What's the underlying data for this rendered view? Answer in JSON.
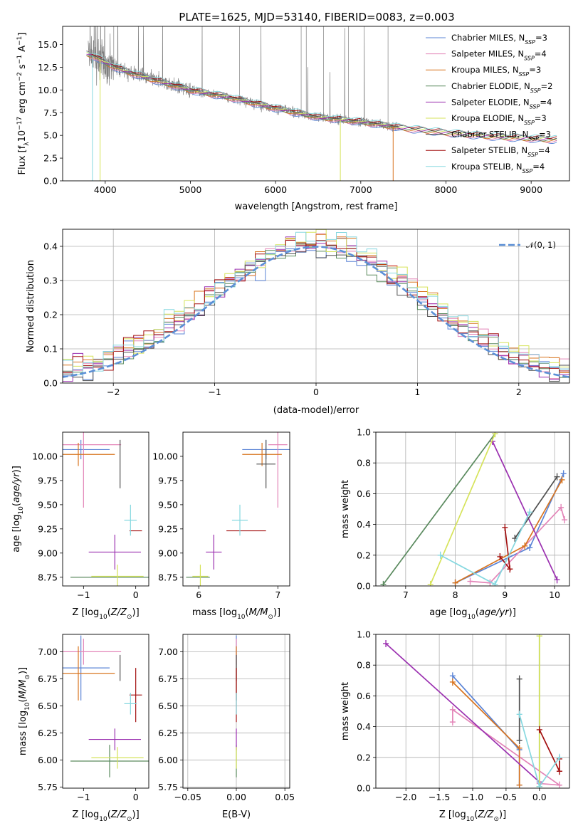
{
  "figure_title": "PLATE=1625, MJD=53140, FIBERID=0083, z=0.003",
  "colors": {
    "Chabrier MILES": "#5b84d6",
    "Salpeter MILES": "#e385b8",
    "Kroupa MILES": "#d8741f",
    "Chabrier ELODIE": "#5a8a5e",
    "Salpeter ELODIE": "#9b30b0",
    "Kroupa ELODIE": "#d6e35a",
    "Chabrier STELIB": "#505050",
    "Salpeter STELIB": "#a31010",
    "Kroupa STELIB": "#86d8e0",
    "data": "#808080",
    "normal": "#5b8fd6"
  },
  "chart_data": [
    {
      "id": "spectrum",
      "type": "line",
      "xlabel": "wavelength [Angstrom, rest frame]",
      "ylabel": "Flux [fλ10⁻¹⁷ erg cm⁻² s⁻¹ A⁻¹]",
      "xlim": [
        3500,
        9450
      ],
      "ylim": [
        0,
        17
      ],
      "xticks": [
        4000,
        5000,
        6000,
        7000,
        8000,
        9000
      ],
      "yticks": [
        0.0,
        2.5,
        5.0,
        7.5,
        10.0,
        12.5,
        15.0
      ],
      "legend": "top-right",
      "legend_entries": [
        {
          "name": "Chabrier MILES",
          "nssp": "3"
        },
        {
          "name": "Salpeter MILES",
          "nssp": "4"
        },
        {
          "name": "Kroupa MILES",
          "nssp": "3"
        },
        {
          "name": "Chabrier ELODIE",
          "nssp": "2"
        },
        {
          "name": "Salpeter ELODIE",
          "nssp": "4"
        },
        {
          "name": "Kroupa ELODIE",
          "nssp": "3"
        },
        {
          "name": "Chabrier STELIB",
          "nssp": "3"
        },
        {
          "name": "Salpeter STELIB",
          "nssp": "4"
        },
        {
          "name": "Kroupa STELIB",
          "nssp": "4"
        }
      ],
      "continuum": {
        "wavelength": [
          3780,
          3900,
          4000,
          4200,
          4500,
          5000,
          5500,
          6000,
          6500,
          7000,
          7500,
          8000,
          8500,
          9200
        ],
        "flux": [
          14.0,
          13.6,
          13.0,
          12.2,
          11.3,
          10.0,
          9.1,
          8.0,
          7.0,
          6.5,
          5.8,
          5.3,
          4.9,
          4.55
        ]
      },
      "data_range": [
        3800,
        7450
      ],
      "model_drops": [
        {
          "series": "Kroupa MILES",
          "at": 7380
        },
        {
          "series": "Kroupa ELODIE",
          "at": 6760
        },
        {
          "series": "Kroupa ELODIE",
          "at": 3940
        },
        {
          "series": "Kroupa STELIB",
          "at": 3850
        }
      ]
    },
    {
      "id": "residuals",
      "type": "histogram",
      "xlabel": "(data-model)/error",
      "ylabel": "Normed distribution",
      "xlim": [
        -2.5,
        2.5
      ],
      "ylim": [
        0,
        0.45
      ],
      "xticks": [
        -2,
        -1,
        0,
        1,
        2
      ],
      "yticks": [
        0.0,
        0.1,
        0.2,
        0.3,
        0.4
      ],
      "grid": true,
      "legend": "top-right",
      "normal_label": "𝒩(0, 1)",
      "bin_width": 0.1
    },
    {
      "id": "age_vs_Z",
      "type": "errorbar",
      "xlabel": "Z [log₁₀(Z/Z⊙)]",
      "ylabel": "age  [log₁₀(age/yr)]",
      "xlim": [
        -1.4,
        0.25
      ],
      "ylim": [
        8.66,
        10.25
      ],
      "xticks": [
        -1,
        0
      ],
      "yticks": [
        8.75,
        9.0,
        9.25,
        9.5,
        9.75,
        10.0
      ]
    },
    {
      "id": "age_vs_mass",
      "type": "errorbar",
      "xlabel": "mass [log₁₀(M/M⊙)]",
      "ylabel": "",
      "xlim": [
        5.8,
        7.15
      ],
      "ylim": [
        8.66,
        10.25
      ],
      "xticks": [
        6,
        7
      ],
      "yticks": [
        8.75,
        9.0,
        9.25,
        9.5,
        9.75,
        10.0
      ]
    },
    {
      "id": "weight_vs_age",
      "type": "line",
      "xlabel": "age  [log₁₀(age/yr)]",
      "ylabel": "mass weight",
      "xlim": [
        6.4,
        10.3
      ],
      "ylim": [
        0,
        1
      ],
      "xticks": [
        7,
        8,
        9,
        10
      ],
      "yticks": [
        0.0,
        0.2,
        0.4,
        0.6,
        0.8,
        1.0
      ],
      "grid": true
    },
    {
      "id": "mass_vs_Z",
      "type": "errorbar",
      "xlabel": "Z [log₁₀(Z/Z⊙)]",
      "ylabel": "mass [log₁₀(M/M⊙)]",
      "xlim": [
        -1.4,
        0.25
      ],
      "ylim": [
        5.74,
        7.16
      ],
      "xticks": [
        -1,
        0
      ],
      "yticks": [
        5.75,
        6.0,
        6.25,
        6.5,
        6.75,
        7.0
      ]
    },
    {
      "id": "mass_vs_ebv",
      "type": "errorbar",
      "xlabel": "E(B-V)",
      "ylabel": "",
      "xlim": [
        -0.055,
        0.055
      ],
      "ylim": [
        5.74,
        7.16
      ],
      "xticks": [
        -0.05,
        0.0,
        0.05
      ],
      "yticks": [
        5.75,
        6.0,
        6.25,
        6.5,
        6.75,
        7.0
      ],
      "grid": true
    },
    {
      "id": "weight_vs_Z",
      "type": "line",
      "xlabel": "Z [log₁₀(Z/Z⊙)]",
      "ylabel": "mass weight",
      "xlim": [
        -2.45,
        0.45
      ],
      "ylim": [
        0,
        1
      ],
      "xticks": [
        -2.0,
        -1.5,
        -1.0,
        -0.5,
        0.0
      ],
      "yticks": [
        0.0,
        0.2,
        0.4,
        0.6,
        0.8,
        1.0
      ],
      "grid": true
    }
  ],
  "population_fits": [
    {
      "series": "Chabrier MILES",
      "age_mean": 10.07,
      "age_err": 0.1,
      "Z_mean": -1.05,
      "Z_err": 0.55,
      "mass_mean": 6.85,
      "mass_err": 0.3,
      "weights": [
        {
          "age": 10.18,
          "Z": -1.3,
          "w": 0.73
        },
        {
          "age": 9.5,
          "Z": -0.3,
          "w": 0.25
        },
        {
          "age": 8.0,
          "Z": -0.3,
          "w": 0.02
        }
      ]
    },
    {
      "series": "Salpeter MILES",
      "age_mean": 10.12,
      "age_err": 0.65,
      "Z_mean": -1.0,
      "Z_err": 0.72,
      "mass_mean": 7.0,
      "mass_err": 0.12,
      "weights": [
        {
          "age": 10.2,
          "Z": -1.3,
          "w": 0.43
        },
        {
          "age": 10.13,
          "Z": -1.3,
          "w": 0.51
        },
        {
          "age": 8.7,
          "Z": 0.3,
          "w": 0.02
        },
        {
          "age": 8.3,
          "Z": 0.0,
          "w": 0.03
        }
      ]
    },
    {
      "series": "Kroupa MILES",
      "age_mean": 10.02,
      "age_err": 0.12,
      "Z_mean": -1.1,
      "Z_err": 0.7,
      "mass_mean": 6.8,
      "mass_err": 0.25,
      "weights": [
        {
          "age": 10.15,
          "Z": -1.3,
          "w": 0.69
        },
        {
          "age": 9.4,
          "Z": -0.3,
          "w": 0.26
        },
        {
          "age": 8.0,
          "Z": -0.3,
          "w": 0.02
        }
      ]
    },
    {
      "series": "Chabrier ELODIE",
      "age_mean": 8.75,
      "age_err": 0.0,
      "Z_mean": -0.5,
      "Z_err": 0.75,
      "mass_mean": 5.99,
      "mass_err": 0.15,
      "weights": [
        {
          "age": 8.8,
          "Z": 0.0,
          "w": 0.99
        },
        {
          "age": 6.55,
          "Z": 0.0,
          "w": 0.01
        }
      ]
    },
    {
      "series": "Salpeter ELODIE",
      "age_mean": 9.01,
      "age_err": 0.18,
      "Z_mean": -0.4,
      "Z_err": 0.5,
      "mass_mean": 6.19,
      "mass_err": 0.1,
      "weights": [
        {
          "age": 8.75,
          "Z": -2.3,
          "w": 0.94
        },
        {
          "age": 10.05,
          "Z": 0.0,
          "w": 0.04
        }
      ]
    },
    {
      "series": "Kroupa ELODIE",
      "age_mean": 8.76,
      "age_err": 0.12,
      "Z_mean": -0.35,
      "Z_err": 0.5,
      "mass_mean": 6.02,
      "mass_err": 0.1,
      "weights": [
        {
          "age": 8.8,
          "Z": 0.0,
          "w": 0.99
        },
        {
          "age": 7.5,
          "Z": 0.0,
          "w": 0.01
        }
      ]
    },
    {
      "series": "Chabrier STELIB",
      "age_mean": 9.92,
      "age_err": 0.25,
      "Z_mean": -0.3,
      "Z_err": 0.0,
      "mass_mean": 6.85,
      "mass_err": 0.12,
      "weights": [
        {
          "age": 10.05,
          "Z": -0.3,
          "w": 0.71
        },
        {
          "age": 9.2,
          "Z": -0.3,
          "w": 0.31
        }
      ]
    },
    {
      "series": "Salpeter STELIB",
      "age_mean": 9.23,
      "age_err": 0.0,
      "Z_mean": 0.0,
      "Z_err": 0.12,
      "mass_mean": 6.6,
      "mass_err": 0.25,
      "weights": [
        {
          "age": 9.0,
          "Z": 0.0,
          "w": 0.38
        },
        {
          "age": 9.1,
          "Z": 0.3,
          "w": 0.11
        },
        {
          "age": 8.9,
          "Z": 0.3,
          "w": 0.19
        }
      ]
    },
    {
      "series": "Kroupa STELIB",
      "age_mean": 9.34,
      "age_err": 0.16,
      "Z_mean": -0.1,
      "Z_err": 0.12,
      "mass_mean": 6.52,
      "mass_err": 0.1,
      "weights": [
        {
          "age": 9.5,
          "Z": -0.3,
          "w": 0.48
        },
        {
          "age": 8.8,
          "Z": 0.0,
          "w": 0.01
        },
        {
          "age": 7.7,
          "Z": 0.3,
          "w": 0.2
        }
      ]
    }
  ]
}
